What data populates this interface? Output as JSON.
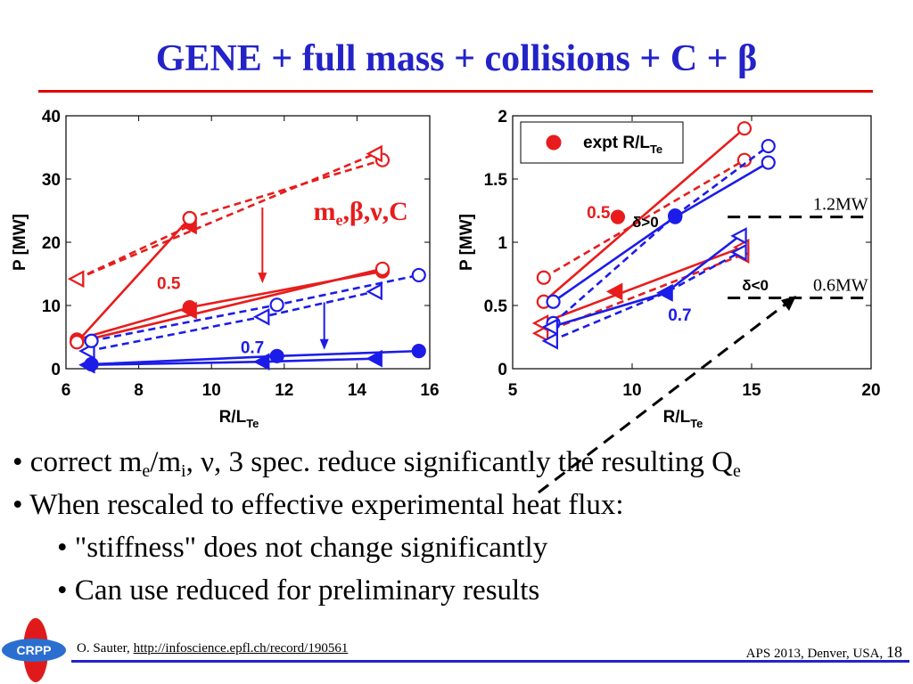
{
  "slide": {
    "title": "GENE + full mass + collisions + C + β",
    "bullets": [
      {
        "text_parts": [
          "• correct m",
          "e",
          "/m",
          "i",
          ", ν, 3 spec. reduce significantly the resulting Q",
          "e"
        ]
      },
      {
        "text": "• When rescaled to effective experimental heat flux:"
      },
      {
        "text": "• \"stiffness\" does not change significantly"
      },
      {
        "text": "• Can use reduced for preliminary results"
      }
    ],
    "footer_author": "O. Sauter, ",
    "footer_link": "http://infoscience.epfl.ch/record/190561",
    "footer_conference": "APS 2013, Denver, USA, ",
    "page_number": "18",
    "logo_text": "CRPP"
  },
  "colors": {
    "red": "#e81c1c",
    "blue": "#1c1ce8",
    "title": "#2323c8",
    "rule": "#e00000"
  },
  "chart_data": [
    {
      "type": "line",
      "xlabel": "R/L",
      "xlabel_sub": "Te",
      "ylabel": "P [MW]",
      "xlim": [
        6,
        16
      ],
      "ylim": [
        0,
        40
      ],
      "xticks": [
        6,
        8,
        10,
        12,
        14,
        16
      ],
      "yticks": [
        0,
        10,
        20,
        30,
        40
      ],
      "annotation": {
        "text": "m",
        "sub": "e",
        "rest": ",β,ν,C"
      },
      "labels": [
        {
          "text": "0.5",
          "color": "red",
          "x": 8.5,
          "y": 12.6
        },
        {
          "text": "0.7",
          "color": "blue",
          "x": 10.8,
          "y": 2.5
        }
      ],
      "arrows": [
        {
          "color": "red",
          "from": [
            11.4,
            25.5
          ],
          "to": [
            11.4,
            13.5
          ]
        },
        {
          "color": "blue",
          "from": [
            13.1,
            10.5
          ],
          "to": [
            13.1,
            3.0
          ]
        }
      ],
      "series": [
        {
          "color": "red",
          "dash": false,
          "marker": "circle-filled",
          "x": [
            6.3,
            9.4
          ],
          "y": [
            4.2,
            23.8
          ]
        },
        {
          "color": "red",
          "dash": true,
          "marker": "tri-left-filled",
          "x": [
            6.3,
            9.4
          ],
          "y": [
            14.2,
            22.6
          ]
        },
        {
          "color": "red",
          "dash": true,
          "marker": "circle-open",
          "x": [
            9.4,
            14.7
          ],
          "y": [
            23.8,
            33.0
          ]
        },
        {
          "color": "red",
          "dash": true,
          "marker": "tri-left-open",
          "x": [
            6.3,
            14.5
          ],
          "y": [
            14.2,
            34.0
          ]
        },
        {
          "color": "red",
          "dash": false,
          "marker": "circle-filled",
          "x": [
            6.3,
            9.4,
            14.7
          ],
          "y": [
            4.6,
            9.7,
            15.4
          ]
        },
        {
          "color": "red",
          "dash": false,
          "marker": "circle-open",
          "x": [
            6.3,
            14.7
          ],
          "y": [
            4.2,
            15.8
          ]
        },
        {
          "color": "red",
          "dash": false,
          "marker": "tri-left-filled",
          "x": [
            9.4
          ],
          "y": [
            9.2
          ]
        },
        {
          "color": "blue",
          "dash": true,
          "marker": "tri-left-open",
          "x": [
            6.6,
            11.4,
            14.5
          ],
          "y": [
            2.8,
            8.2,
            12.2
          ]
        },
        {
          "color": "blue",
          "dash": true,
          "marker": "circle-open",
          "x": [
            6.7,
            11.8,
            15.7
          ],
          "y": [
            4.4,
            10.1,
            14.8
          ]
        },
        {
          "color": "blue",
          "dash": false,
          "marker": "circle-filled",
          "x": [
            6.7,
            11.8,
            15.7
          ],
          "y": [
            0.7,
            2.0,
            2.8
          ]
        },
        {
          "color": "blue",
          "dash": false,
          "marker": "tri-left-filled",
          "x": [
            6.6,
            11.4,
            14.5
          ],
          "y": [
            0.6,
            1.1,
            1.6
          ]
        }
      ]
    },
    {
      "type": "line",
      "xlabel": "R/L",
      "xlabel_sub": "Te",
      "ylabel": "P [MW]",
      "xlim": [
        5,
        20
      ],
      "ylim": [
        0,
        2
      ],
      "xticks": [
        5,
        10,
        15,
        20
      ],
      "yticks": [
        0,
        0.5,
        1,
        1.5,
        2
      ],
      "legend": {
        "position": "top-left",
        "marker": "circle-filled",
        "color": "red",
        "label": "expt R/L",
        "label_sub": "Te"
      },
      "labels": [
        {
          "text": "0.5",
          "color": "red",
          "x": 8.1,
          "y": 1.19
        },
        {
          "text": "0.7",
          "color": "blue",
          "x": 11.5,
          "y": 0.38
        },
        {
          "text": "δ>0",
          "color": "black",
          "x": 10.0,
          "y": 1.12
        },
        {
          "text": "δ<0",
          "color": "black",
          "x": 14.6,
          "y": 0.62
        }
      ],
      "reference_lines": [
        {
          "label": "1.2MW",
          "y": 1.2,
          "x": [
            14.0,
            19.8
          ]
        },
        {
          "label": "0.6MW",
          "y": 0.56,
          "x": [
            14.0,
            19.8
          ]
        }
      ],
      "series": [
        {
          "color": "red",
          "dash": true,
          "marker": "circle-open",
          "x": [
            6.3,
            14.7
          ],
          "y": [
            0.72,
            1.65
          ]
        },
        {
          "color": "red",
          "dash": false,
          "marker": "circle-open",
          "x": [
            6.3,
            14.7
          ],
          "y": [
            0.53,
            1.9
          ]
        },
        {
          "color": "red",
          "dash": true,
          "marker": "tri-left-open",
          "x": [
            6.2,
            14.6
          ],
          "y": [
            0.28,
            0.9
          ]
        },
        {
          "color": "red",
          "dash": false,
          "marker": "tri-left-open",
          "x": [
            6.2,
            14.6
          ],
          "y": [
            0.36,
            0.96
          ]
        },
        {
          "color": "red",
          "dash": false,
          "marker": "circle-filled",
          "x": [
            9.4
          ],
          "y": [
            1.2
          ]
        },
        {
          "color": "red",
          "dash": false,
          "marker": "tri-left-filled",
          "x": [
            9.3
          ],
          "y": [
            0.61
          ]
        },
        {
          "color": "blue",
          "dash": false,
          "marker": "circle-open",
          "x": [
            6.7,
            11.8,
            15.7
          ],
          "y": [
            0.53,
            1.2,
            1.63
          ]
        },
        {
          "color": "blue",
          "dash": true,
          "marker": "circle-open",
          "x": [
            6.7,
            11.8,
            15.7
          ],
          "y": [
            0.36,
            1.21,
            1.76
          ]
        },
        {
          "color": "blue",
          "dash": false,
          "marker": "tri-left-open",
          "x": [
            6.6,
            11.4,
            14.5
          ],
          "y": [
            0.33,
            0.6,
            1.05
          ]
        },
        {
          "color": "blue",
          "dash": true,
          "marker": "tri-left-open",
          "x": [
            6.6,
            11.4,
            14.5
          ],
          "y": [
            0.22,
            0.6,
            0.92
          ]
        },
        {
          "color": "blue",
          "dash": false,
          "marker": "circle-filled",
          "x": [
            11.8
          ],
          "y": [
            1.21
          ]
        },
        {
          "color": "blue",
          "dash": false,
          "marker": "tri-left-filled",
          "x": [
            11.4
          ],
          "y": [
            0.6
          ]
        }
      ]
    }
  ]
}
